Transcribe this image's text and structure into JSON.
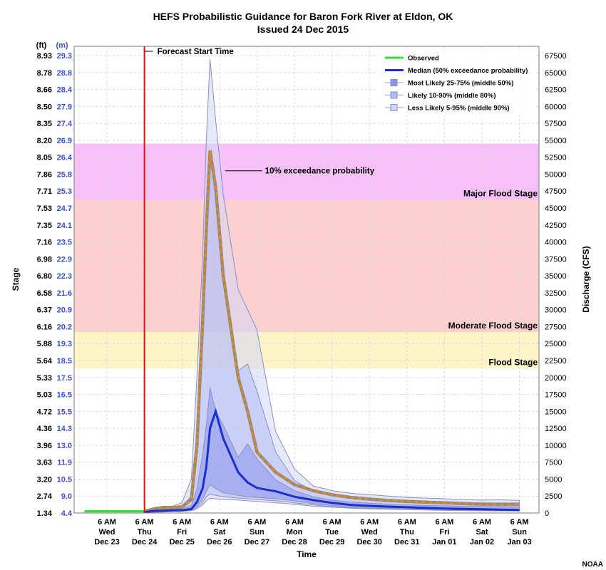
{
  "chart_data": {
    "type": "line",
    "title": "HEFS Probabilistic Guidance for Baron Fork River at Eldon, OK",
    "subtitle": "Issued 24 Dec 2015",
    "xlabel": "Time",
    "ylabel_left": "Stage",
    "ylabel_right": "Discharge (CFS)",
    "unit_ft": "(ft)",
    "unit_m": "(m)",
    "credit": "NOAA",
    "y_ft_ticks": [
      "8.93",
      "8.78",
      "8.66",
      "8.50",
      "8.35",
      "8.20",
      "8.05",
      "7.86",
      "7.71",
      "7.53",
      "7.35",
      "7.16",
      "6.98",
      "6.80",
      "6.58",
      "6.37",
      "6.16",
      "5.88",
      "5.64",
      "5.33",
      "5.03",
      "4.72",
      "4.36",
      "3.96",
      "3.63",
      "3.20",
      "2.74",
      "1.34"
    ],
    "y_m_ticks": [
      "29.3",
      "28.8",
      "28.4",
      "27.9",
      "27.4",
      "26.9",
      "26.4",
      "25.8",
      "25.3",
      "24.7",
      "24.1",
      "23.5",
      "22.9",
      "22.3",
      "21.6",
      "20.9",
      "20.2",
      "19.3",
      "18.5",
      "17.5",
      "16.5",
      "15.5",
      "14.3",
      "13.0",
      "11.9",
      "10.5",
      "9.0",
      "4.4"
    ],
    "y_cfs_ticks": [
      "67500",
      "65000",
      "62500",
      "60000",
      "57500",
      "55000",
      "52500",
      "50000",
      "47500",
      "45000",
      "42500",
      "40000",
      "37500",
      "35000",
      "32500",
      "30000",
      "27500",
      "25000",
      "22500",
      "20000",
      "17500",
      "15000",
      "12500",
      "10000",
      "7500",
      "5000",
      "2500",
      "0"
    ],
    "ylim_cfs": [
      0,
      67500
    ],
    "x_ticks": [
      {
        "hour": "6 AM",
        "day": "Wed",
        "date": "Dec 23"
      },
      {
        "hour": "6 AM",
        "day": "Thu",
        "date": "Dec 24"
      },
      {
        "hour": "6 AM",
        "day": "Fri",
        "date": "Dec 25"
      },
      {
        "hour": "6 AM",
        "day": "Sat",
        "date": "Dec 26"
      },
      {
        "hour": "6 AM",
        "day": "Sun",
        "date": "Dec 27"
      },
      {
        "hour": "6 AM",
        "day": "Mon",
        "date": "Dec 28"
      },
      {
        "hour": "6 AM",
        "day": "Tue",
        "date": "Dec 29"
      },
      {
        "hour": "6 AM",
        "day": "Wed",
        "date": "Dec 30"
      },
      {
        "hour": "6 AM",
        "day": "Thu",
        "date": "Dec 31"
      },
      {
        "hour": "6 AM",
        "day": "Fri",
        "date": "Jan 01"
      },
      {
        "hour": "6 AM",
        "day": "Sat",
        "date": "Jan 02"
      },
      {
        "hour": "6 AM",
        "day": "Sun",
        "date": "Jan 03"
      }
    ],
    "grid": true,
    "legend_position": "top-right",
    "flood_stages": [
      {
        "name": "Flood Stage",
        "from_cfs": 21300,
        "to_cfs": 26700,
        "color": "#fdf5c8"
      },
      {
        "name": "Moderate Flood Stage",
        "from_cfs": 26700,
        "to_cfs": 46200,
        "color": "#fdd0d0"
      },
      {
        "name": "Major Flood Stage",
        "from_cfs": 46200,
        "to_cfs": 54500,
        "color": "#f8c0f8"
      }
    ],
    "forecast_start": {
      "label": "Forecast Start Time",
      "day": 1.0
    },
    "annotation": {
      "label": "10% exceedance probability",
      "day": 3.15,
      "cfs": 50500
    },
    "series": [
      {
        "name": "Observed",
        "color": "#33dd33",
        "x": [
          -0.6,
          1.0
        ],
        "y": [
          250,
          250
        ]
      },
      {
        "name": "Median (50% exceedance probability)",
        "color": "#1a2fcc",
        "x": [
          1.0,
          1.25,
          1.5,
          1.75,
          2.0,
          2.25,
          2.4,
          2.55,
          2.65,
          2.75,
          2.9,
          3.1,
          3.5,
          3.75,
          4.0,
          4.5,
          5.0,
          5.5,
          6.0,
          6.5,
          7.0,
          7.5,
          8.0,
          8.5,
          9.0,
          9.5,
          10.0,
          10.5,
          11.0
        ],
        "y": [
          150,
          300,
          350,
          400,
          400,
          600,
          1600,
          3600,
          6800,
          12500,
          15000,
          11000,
          6000,
          4500,
          3700,
          3200,
          2400,
          1900,
          1500,
          1200,
          1050,
          950,
          850,
          750,
          650,
          600,
          550,
          500,
          450
        ]
      },
      {
        "name": "Most Likely 25-75% (middle 50%)",
        "color": "#8a94ec",
        "x": [
          1.0,
          1.25,
          1.5,
          1.75,
          2.0,
          2.25,
          2.4,
          2.55,
          2.65,
          2.75,
          2.9,
          3.1,
          3.5,
          3.75,
          4.0,
          4.5,
          5.0,
          5.5,
          6.0,
          6.5,
          7.0,
          7.5,
          8.0,
          8.5,
          9.0,
          9.5,
          10.0,
          10.5,
          11.0
        ],
        "lower": [
          100,
          200,
          250,
          300,
          350,
          500,
          1000,
          2000,
          3200,
          4200,
          3600,
          3000,
          2600,
          2400,
          2300,
          2100,
          1800,
          1400,
          1100,
          950,
          850,
          750,
          700,
          650,
          550,
          500,
          450,
          400,
          380
        ],
        "upper": [
          250,
          450,
          500,
          550,
          600,
          1100,
          3500,
          8500,
          13000,
          18500,
          15000,
          13000,
          8200,
          10200,
          8000,
          4900,
          3300,
          2400,
          1900,
          1600,
          1450,
          1300,
          1200,
          1100,
          1050,
          1000,
          950,
          950,
          900
        ]
      },
      {
        "name": "Likely 10-90% (middle 80%)",
        "color": "#b4bbf2",
        "x": [
          1.0,
          1.25,
          1.5,
          1.75,
          2.0,
          2.25,
          2.4,
          2.55,
          2.65,
          2.75,
          2.9,
          3.1,
          3.5,
          3.75,
          4.0,
          4.5,
          5.0,
          5.5,
          6.0,
          6.5,
          7.0,
          7.5,
          8.0,
          8.5,
          9.0,
          9.5,
          10.0,
          10.5,
          11.0
        ],
        "lower": [
          80,
          150,
          200,
          250,
          300,
          400,
          800,
          1500,
          2400,
          2800,
          2600,
          2400,
          2200,
          2100,
          2000,
          1800,
          1500,
          1200,
          950,
          800,
          700,
          650,
          600,
          550,
          500,
          450,
          400,
          380,
          350
        ],
        "upper": [
          350,
          600,
          800,
          800,
          1000,
          2500,
          12000,
          30000,
          45000,
          53000,
          48000,
          36000,
          21000,
          22000,
          18000,
          9000,
          4800,
          3200,
          2600,
          2300,
          2100,
          1900,
          1800,
          1650,
          1550,
          1500,
          1500,
          1450,
          1400
        ]
      },
      {
        "name": "Less Likely 5-95% (middle 90%)",
        "color": "#d2d6f7",
        "x": [
          1.0,
          1.25,
          1.5,
          1.75,
          2.0,
          2.25,
          2.4,
          2.55,
          2.65,
          2.75,
          2.9,
          3.1,
          3.5,
          3.75,
          4.0,
          4.5,
          5.0,
          5.5,
          6.0,
          6.5,
          7.0,
          7.5,
          8.0,
          8.5,
          9.0,
          9.5,
          10.0,
          10.5,
          11.0
        ],
        "lower": [
          50,
          100,
          150,
          200,
          250,
          350,
          600,
          1200,
          1800,
          2200,
          2100,
          2000,
          1900,
          1800,
          1700,
          1500,
          1300,
          1000,
          850,
          700,
          600,
          550,
          500,
          450,
          400,
          350,
          330,
          300,
          280
        ],
        "upper": [
          400,
          800,
          1000,
          1000,
          1500,
          5000,
          20000,
          38000,
          55000,
          67000,
          58000,
          47000,
          33000,
          30000,
          27000,
          12000,
          6500,
          4000,
          3300,
          2900,
          2700,
          2500,
          2300,
          2200,
          2100,
          2000,
          1900,
          1950,
          1850
        ]
      },
      {
        "name": "10% exceedance probability",
        "color": "#e08a1e",
        "x": [
          1.0,
          1.25,
          1.5,
          1.75,
          2.0,
          2.25,
          2.4,
          2.55,
          2.65,
          2.75,
          2.9,
          3.1,
          3.5,
          3.75,
          4.0,
          4.5,
          5.0,
          5.5,
          6.0,
          6.5,
          7.0,
          7.5,
          8.0,
          8.5,
          9.0,
          9.5,
          10.0,
          10.5,
          11.0
        ],
        "y": [
          300,
          550,
          800,
          800,
          900,
          2000,
          10000,
          28000,
          42000,
          53500,
          48000,
          35000,
          20000,
          15000,
          9000,
          6000,
          4200,
          3300,
          2700,
          2300,
          2050,
          1850,
          1700,
          1600,
          1500,
          1400,
          1300,
          1300,
          1300
        ]
      }
    ]
  }
}
